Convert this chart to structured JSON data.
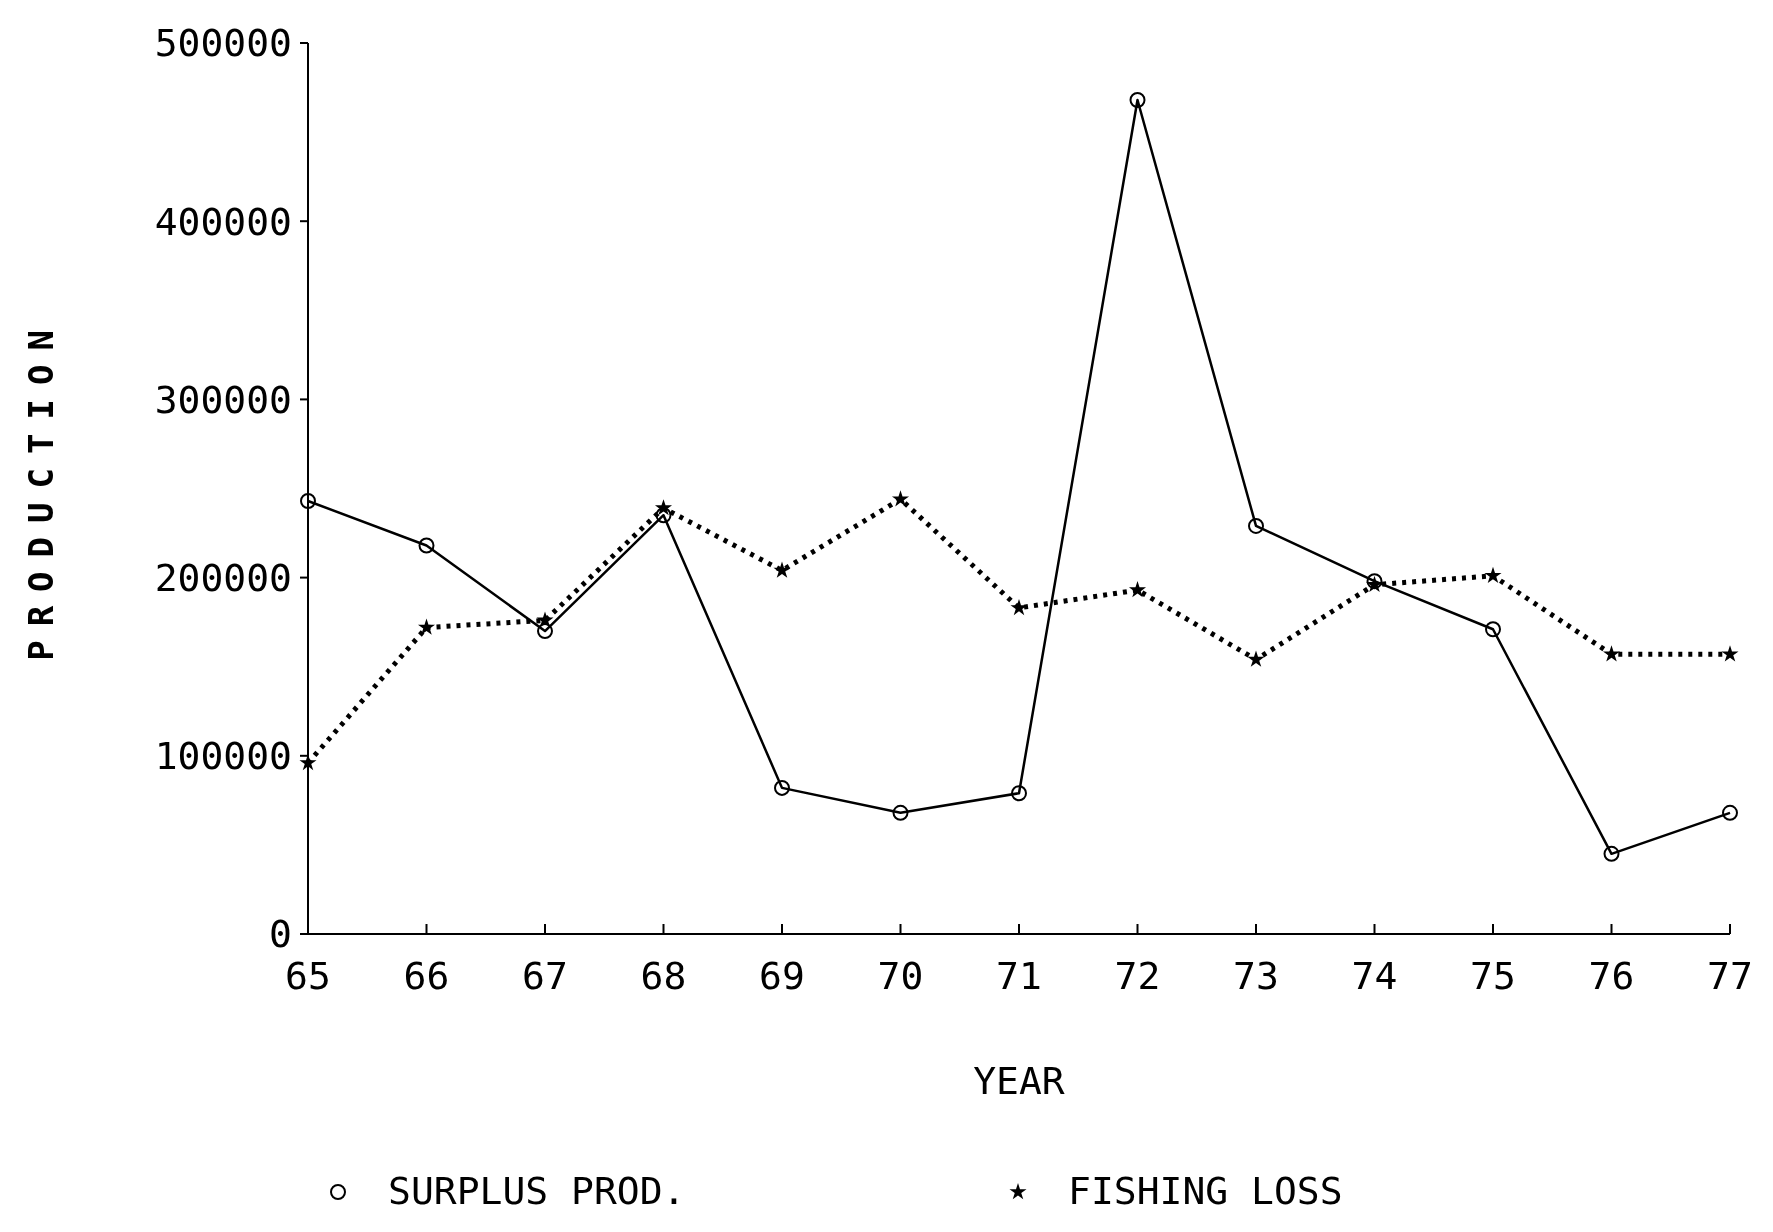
{
  "chart_data": {
    "type": "line",
    "xlabel": "YEAR",
    "ylabel": "PRODUCTION",
    "x": [
      65,
      66,
      67,
      68,
      69,
      70,
      71,
      72,
      73,
      74,
      75,
      76,
      77
    ],
    "xlim": [
      65,
      77
    ],
    "xticks": [
      65,
      66,
      67,
      68,
      69,
      70,
      71,
      72,
      73,
      74,
      75,
      76,
      77
    ],
    "ylim": [
      0,
      500000
    ],
    "yticks": [
      0,
      100000,
      200000,
      300000,
      400000,
      500000
    ],
    "grid": false,
    "legend": "bottom",
    "series": [
      {
        "name": "SURPLUS PROD.",
        "color": "#000000",
        "marker": "circle",
        "line_style": "solid",
        "values": [
          243000,
          218000,
          170000,
          235000,
          82000,
          68000,
          79000,
          468000,
          229000,
          198000,
          171000,
          45000,
          68000
        ]
      },
      {
        "name": "FISHING LOSS",
        "color": "#000000",
        "marker": "star",
        "line_style": "dotted",
        "values": [
          96000,
          172000,
          176000,
          239000,
          204000,
          244000,
          183000,
          193000,
          154000,
          196000,
          201000,
          157000,
          157000
        ]
      }
    ]
  }
}
